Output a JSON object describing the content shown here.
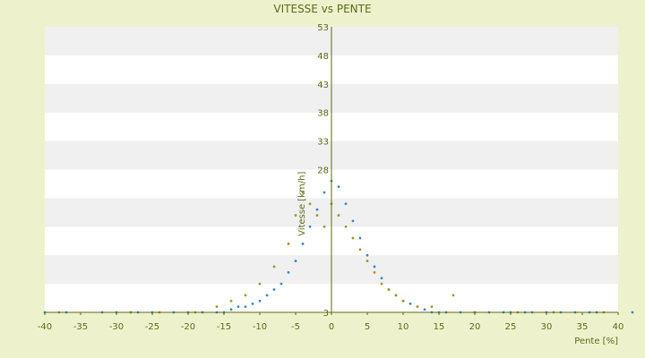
{
  "chart_data": {
    "type": "scatter",
    "title": "VITESSE vs PENTE",
    "xlabel": "Pente [%]",
    "ylabel": "Vitesse [km/h]",
    "xlim": [
      -40,
      40
    ],
    "ylim": [
      3,
      53
    ],
    "x_ticks": [
      "-40",
      "-35",
      "-30",
      "-25",
      "-20",
      "-15",
      "-10",
      "-5",
      "0",
      "5",
      "10",
      "15",
      "20",
      "25",
      "30",
      "35",
      "40"
    ],
    "y_ticks": [
      "3",
      "8",
      "13",
      "18",
      "23",
      "28",
      "33",
      "38",
      "43",
      "48",
      "53"
    ],
    "y_tick_labels_shown": [
      "3",
      "28",
      "33",
      "38",
      "43",
      "48",
      "53"
    ],
    "grid": "horizontal-banded",
    "colors": {
      "background": "#eef2cc",
      "plot_band_light": "#ffffff",
      "plot_band_dark": "#f0f0f0",
      "axis": "#5a6a1a",
      "text": "#5a6a1a",
      "series_blue": "#3a88c8",
      "series_olive": "#9a9a2a"
    },
    "series": [
      {
        "color": "#3a88c8",
        "points": [
          [
            -40,
            3
          ],
          [
            -37,
            3
          ],
          [
            -32,
            3
          ],
          [
            -30,
            3
          ],
          [
            -28,
            3
          ],
          [
            -27,
            3
          ],
          [
            -25,
            3
          ],
          [
            -22,
            3
          ],
          [
            -20,
            3
          ],
          [
            -18,
            3
          ],
          [
            -16,
            3
          ],
          [
            -15,
            3
          ],
          [
            -14,
            3.5
          ],
          [
            -13,
            4
          ],
          [
            -12,
            4
          ],
          [
            -11,
            4.5
          ],
          [
            -10,
            5
          ],
          [
            -9,
            6
          ],
          [
            -8,
            7
          ],
          [
            -7,
            8
          ],
          [
            -6,
            10
          ],
          [
            -5,
            12
          ],
          [
            -4,
            15
          ],
          [
            -3,
            18
          ],
          [
            -2,
            21
          ],
          [
            -1,
            24
          ],
          [
            0,
            26
          ],
          [
            1,
            25
          ],
          [
            2,
            22
          ],
          [
            3,
            19
          ],
          [
            4,
            16
          ],
          [
            5,
            13
          ],
          [
            6,
            11
          ],
          [
            7,
            9
          ],
          [
            8,
            7
          ],
          [
            9,
            6
          ],
          [
            10,
            5
          ],
          [
            11,
            4.5
          ],
          [
            12,
            4
          ],
          [
            13,
            3.5
          ],
          [
            14,
            3
          ],
          [
            15,
            3
          ],
          [
            16,
            3
          ],
          [
            18,
            3
          ],
          [
            20,
            3
          ],
          [
            22,
            3
          ],
          [
            24,
            3
          ],
          [
            25,
            3
          ],
          [
            27,
            3
          ],
          [
            28,
            3
          ],
          [
            30,
            3
          ],
          [
            32,
            3
          ],
          [
            34,
            3
          ],
          [
            36,
            3
          ],
          [
            37,
            3
          ],
          [
            42,
            3
          ]
        ]
      },
      {
        "color": "#9a9a2a",
        "points": [
          [
            -38,
            3
          ],
          [
            -28,
            3
          ],
          [
            -24,
            3
          ],
          [
            -19,
            3
          ],
          [
            -16,
            4
          ],
          [
            -14,
            5
          ],
          [
            -12,
            6
          ],
          [
            -10,
            8
          ],
          [
            -8,
            11
          ],
          [
            -6,
            15
          ],
          [
            -5,
            20
          ],
          [
            -4,
            24
          ],
          [
            -3,
            22
          ],
          [
            -2,
            20
          ],
          [
            -1,
            18
          ],
          [
            0,
            22
          ],
          [
            1,
            20
          ],
          [
            2,
            18
          ],
          [
            3,
            16
          ],
          [
            4,
            14
          ],
          [
            5,
            12
          ],
          [
            6,
            10
          ],
          [
            7,
            8
          ],
          [
            8,
            7
          ],
          [
            9,
            6
          ],
          [
            10,
            5
          ],
          [
            12,
            4
          ],
          [
            14,
            4
          ],
          [
            17,
            6
          ],
          [
            20,
            3
          ],
          [
            26,
            3
          ],
          [
            31,
            3
          ],
          [
            38,
            3
          ]
        ]
      }
    ]
  }
}
